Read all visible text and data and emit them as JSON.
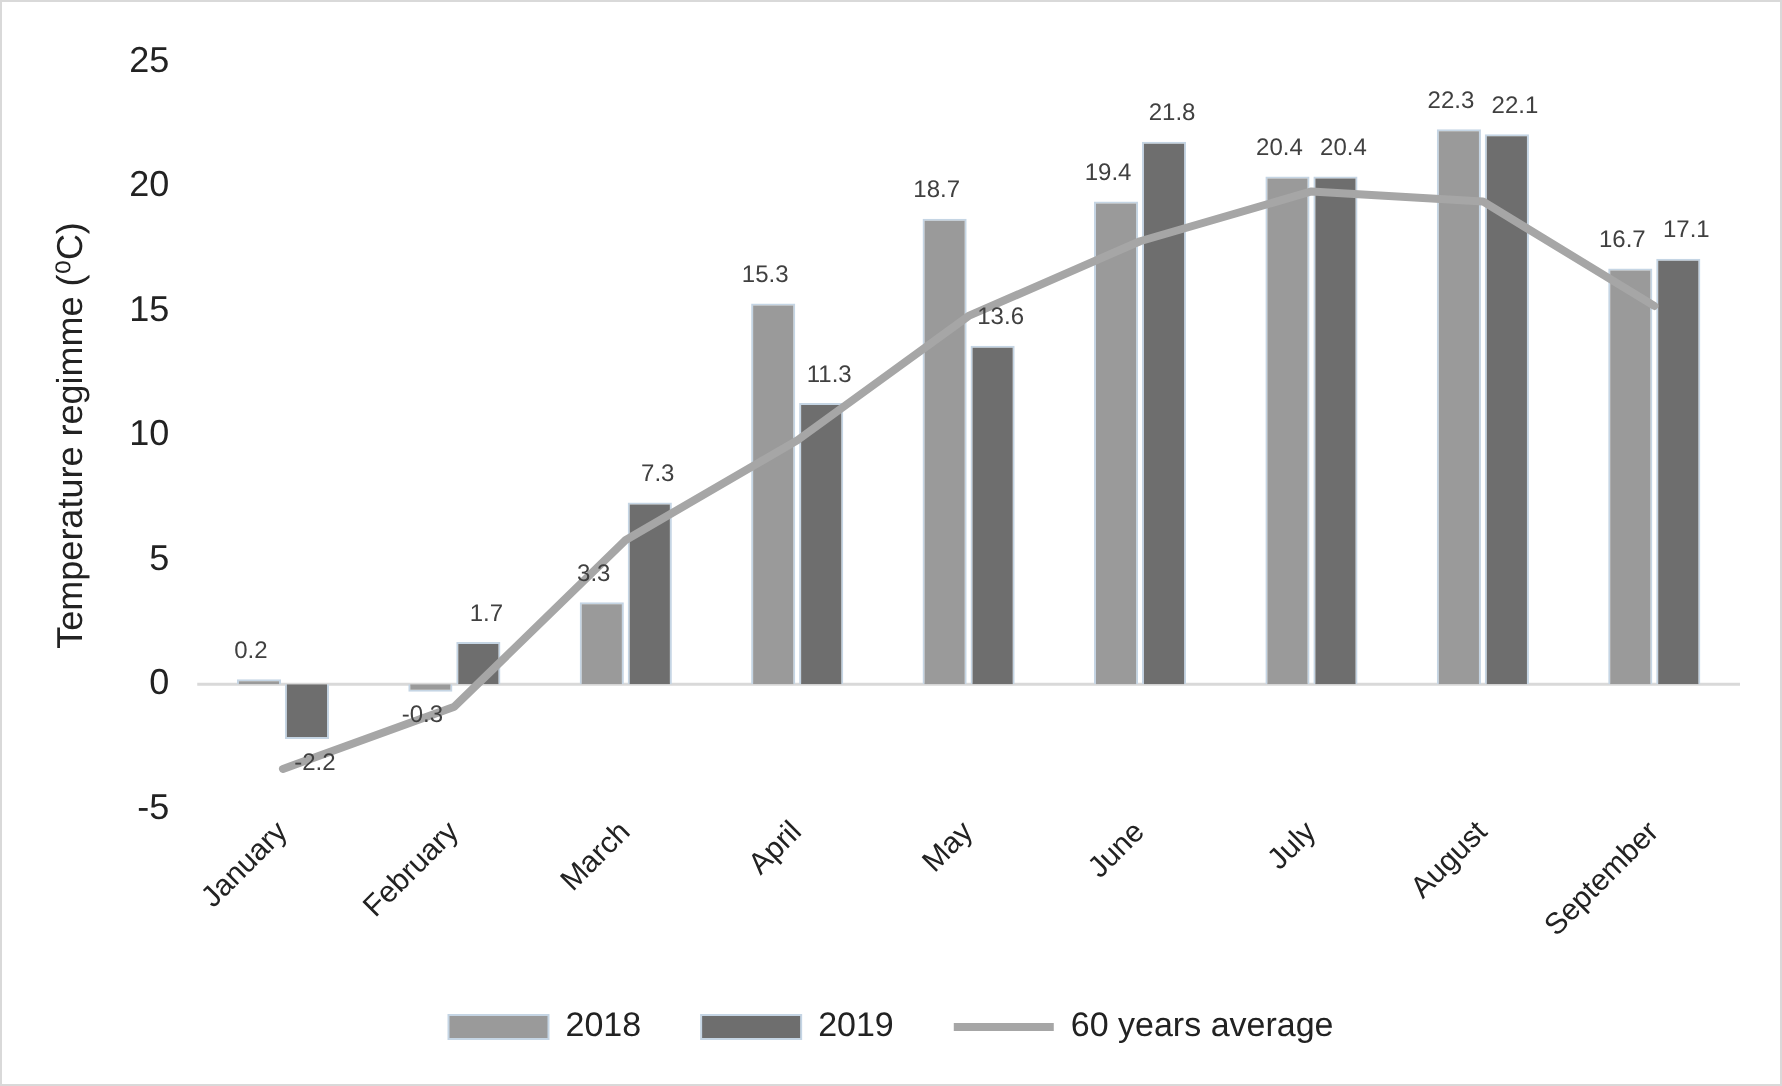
{
  "chart_data": {
    "type": "bar",
    "ylabel": "Temperature regimme (⁰C)",
    "categories": [
      "January",
      "February",
      "March",
      "April",
      "May",
      "June",
      "July",
      "August",
      "September"
    ],
    "series": [
      {
        "name": "2018",
        "color": "#9a9a9a",
        "values": [
          0.2,
          -0.3,
          3.3,
          15.3,
          18.7,
          19.4,
          20.4,
          22.3,
          16.7
        ],
        "value_labels": [
          "0.2",
          "-0.3",
          "3.3",
          "15.3",
          "18.7",
          "19.4",
          "20.4",
          "22.3",
          "16.7"
        ]
      },
      {
        "name": "2019",
        "color": "#6e6e6e",
        "values": [
          -2.2,
          1.7,
          7.3,
          11.3,
          13.6,
          21.8,
          20.4,
          22.1,
          17.1
        ],
        "value_labels": [
          "-2.2",
          "1.7",
          "7.3",
          "11.3",
          "13.6",
          "21.8",
          "20.4",
          "22.1",
          "17.1"
        ]
      },
      {
        "name": "60 years average",
        "type": "line",
        "color": "#a6a6a6",
        "values": [
          -3.4,
          -0.9,
          5.8,
          9.8,
          14.8,
          17.8,
          19.8,
          19.4,
          15.2
        ]
      }
    ],
    "ylim": [
      -5,
      25
    ],
    "yticks": [
      -5,
      0,
      5,
      10,
      15,
      20,
      25
    ],
    "grid": false,
    "ref_lines": [
      {
        "axis": "y",
        "value": 0,
        "color": "#d9d9d9"
      }
    ],
    "legend": "bottom",
    "marker": "none"
  }
}
